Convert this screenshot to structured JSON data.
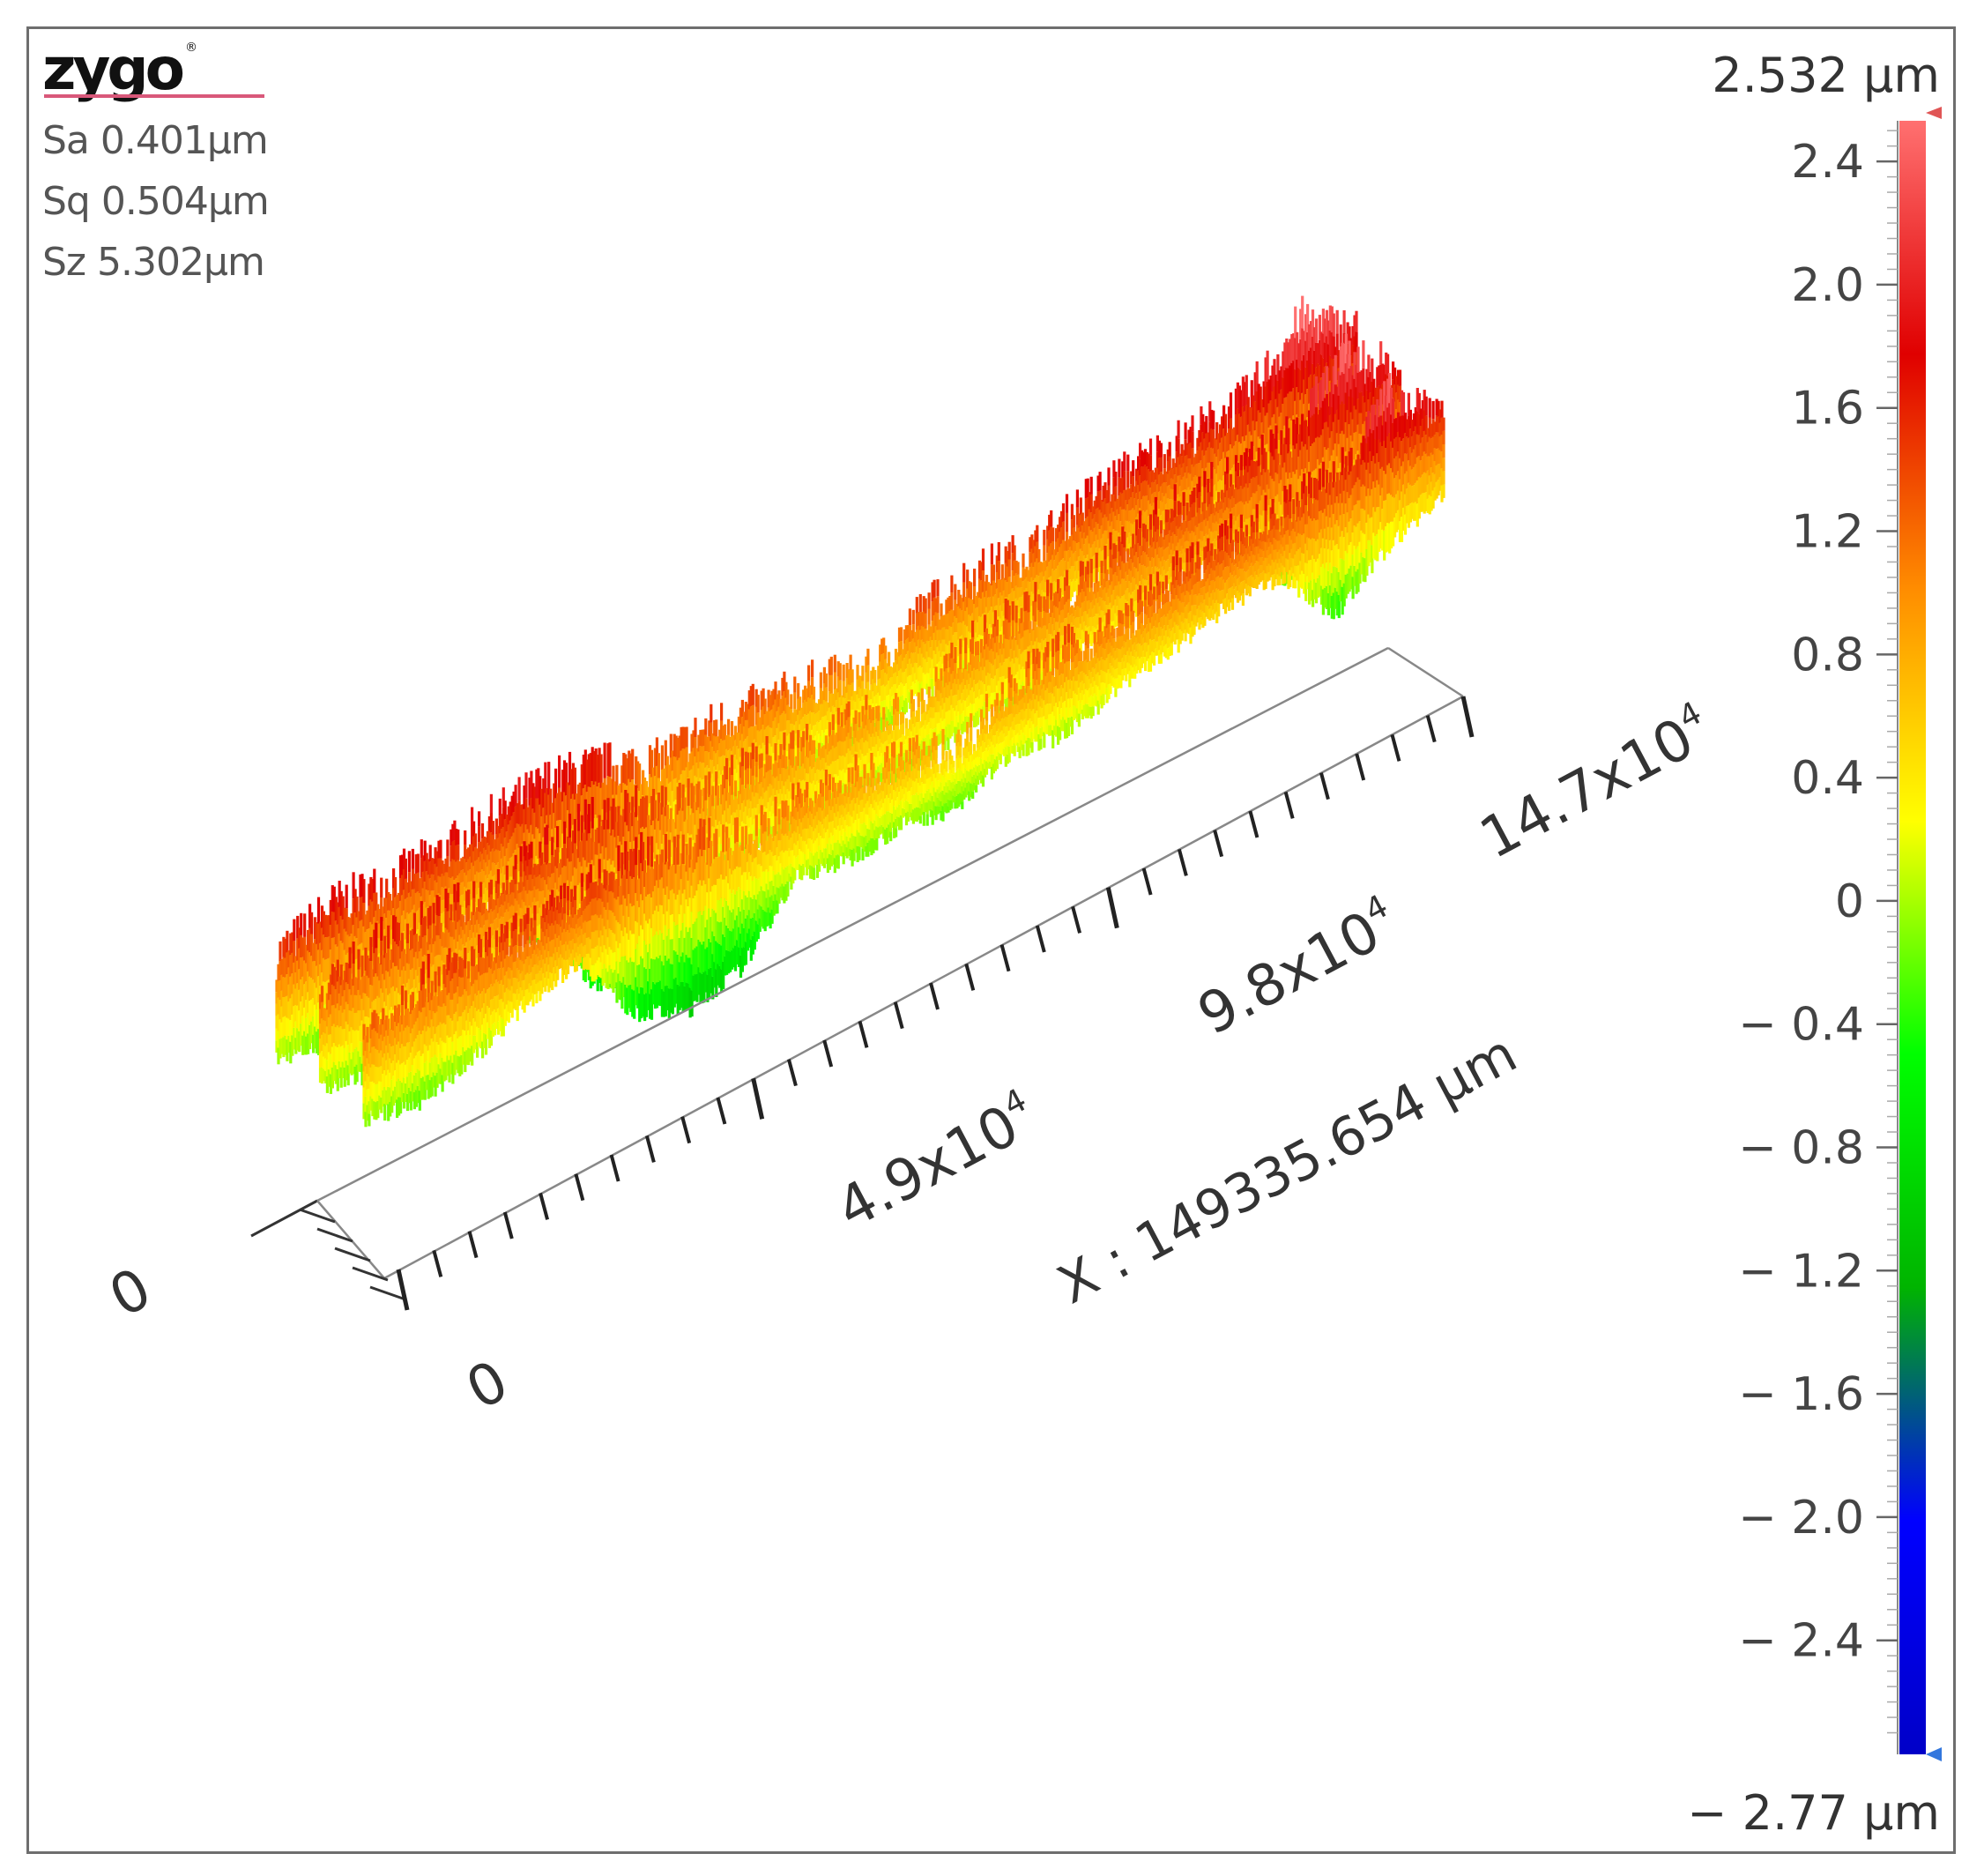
{
  "logo": {
    "text": "zygo",
    "mark": "®",
    "underline_color": "#d9587a"
  },
  "stats": [
    {
      "label": "Sa",
      "value": "0.401",
      "unit": "µm"
    },
    {
      "label": "Sq",
      "value": "0.504",
      "unit": "µm"
    },
    {
      "label": "Sz",
      "value": "5.302",
      "unit": "µm"
    }
  ],
  "colorbar": {
    "max_label": "2.532 µm",
    "min_label": "− 2.77 µm",
    "max": 2.532,
    "min": -2.77,
    "ticks": [
      "2.4",
      "2.0",
      "1.6",
      "1.2",
      "0.8",
      "0.4",
      "0",
      "− 0.4",
      "− 0.8",
      "− 1.2",
      "− 1.6",
      "− 2.0",
      "− 2.4"
    ],
    "tick_values": [
      2.4,
      2.0,
      1.6,
      1.2,
      0.8,
      0.4,
      0,
      -0.4,
      -0.8,
      -1.2,
      -1.6,
      -2.0,
      -2.4
    ],
    "colormap": [
      "#0000c8",
      "#0000ff",
      "#00b400",
      "#00ff00",
      "#ffff00",
      "#ff8c00",
      "#e00000",
      "#ff7070"
    ],
    "max_marker_color": "#e05555",
    "min_marker_color": "#3377dd"
  },
  "chart_data": {
    "type": "surface",
    "x_axis_label": "X : 149335.654 µm",
    "x_tick_labels": [
      "0",
      "4.9x10",
      "9.8x10",
      "14.7x10"
    ],
    "x_tick_exponent": "4",
    "y_tick_labels": [
      "0"
    ],
    "x_range": [
      0,
      149335.654
    ],
    "z_range": [
      -2.77,
      2.532
    ],
    "profile_x": [
      0,
      0.05,
      0.1,
      0.15,
      0.2,
      0.25,
      0.3,
      0.35,
      0.4,
      0.45,
      0.5,
      0.55,
      0.6,
      0.65,
      0.7,
      0.75,
      0.8,
      0.85,
      0.9,
      0.95,
      1.0
    ],
    "profile_z_top": [
      1.3,
      1.6,
      1.5,
      1.5,
      1.6,
      1.7,
      1.5,
      1.1,
      1.2,
      1.1,
      1.0,
      0.7,
      1.2,
      1.3,
      1.2,
      1.5,
      1.6,
      1.6,
      1.7,
      2.4,
      1.8
    ],
    "profile_z_bottom": [
      -0.2,
      -0.4,
      -0.2,
      0.2,
      0.4,
      -0.8,
      -1.2,
      -1.0,
      -0.1,
      -0.3,
      -0.2,
      -0.4,
      0.0,
      -0.2,
      0.1,
      0.2,
      0.4,
      0.4,
      -0.6,
      0.0,
      0.3
    ]
  }
}
